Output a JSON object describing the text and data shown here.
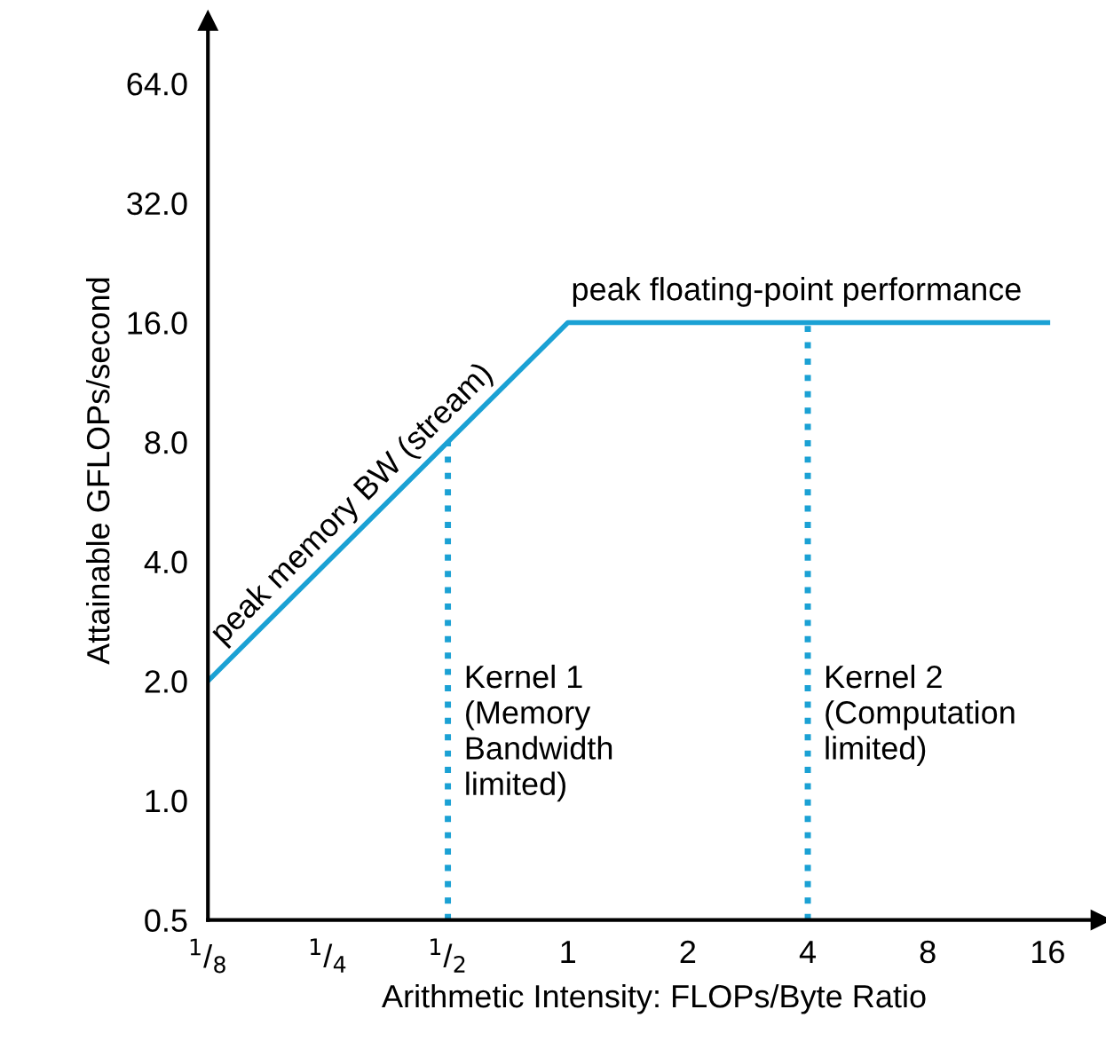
{
  "chart_data": {
    "type": "line",
    "xlabel": "Arithmetic Intensity: FLOPs/Byte Ratio",
    "ylabel": "Attainable GFLOPs/second",
    "log": "xy",
    "grid": false,
    "legend": false,
    "marker": "none",
    "line_style": "solid",
    "x": [
      0.125,
      1,
      16
    ],
    "series": [
      {
        "color": "#1ba1d4",
        "values": [
          2,
          16,
          16
        ]
      }
    ],
    "xlim": [
      0.125,
      21.7
    ],
    "ylim": [
      0.5,
      92
    ],
    "xticks": [
      {
        "value": 0.125,
        "label": "$^{1}$/$_{8}$"
      },
      {
        "value": 0.25,
        "label": "$^{1}$/$_{4}$"
      },
      {
        "value": 0.5,
        "label": "$^{1}$/$_{2}$"
      },
      1,
      2,
      4,
      8,
      16
    ],
    "yticks": [
      {
        "value": 0.5,
        "label": "0.5"
      },
      {
        "value": 1,
        "label": "1.0"
      },
      {
        "value": 2,
        "label": "2.0"
      },
      {
        "value": 4,
        "label": "4.0"
      },
      {
        "value": 8,
        "label": "8.0"
      },
      {
        "value": 16,
        "label": "16.0"
      },
      {
        "value": 32,
        "label": "32.0"
      },
      {
        "value": 64,
        "label": "64.0"
      }
    ],
    "ref_lines": [
      {
        "axis": "x",
        "value": 0.5,
        "color": "#1ba1d4",
        "line_style": "dotted"
      },
      {
        "axis": "x",
        "value": 4,
        "color": "#1ba1d4",
        "line_style": "dotted"
      }
    ],
    "annotations": [
      "peak memory BW (stream)",
      "peak floating-point performance",
      "Kernel 1\n(Memory\nBandwidth\nlimited)",
      "Kernel 2\n(Computation\nlimited)"
    ]
  }
}
